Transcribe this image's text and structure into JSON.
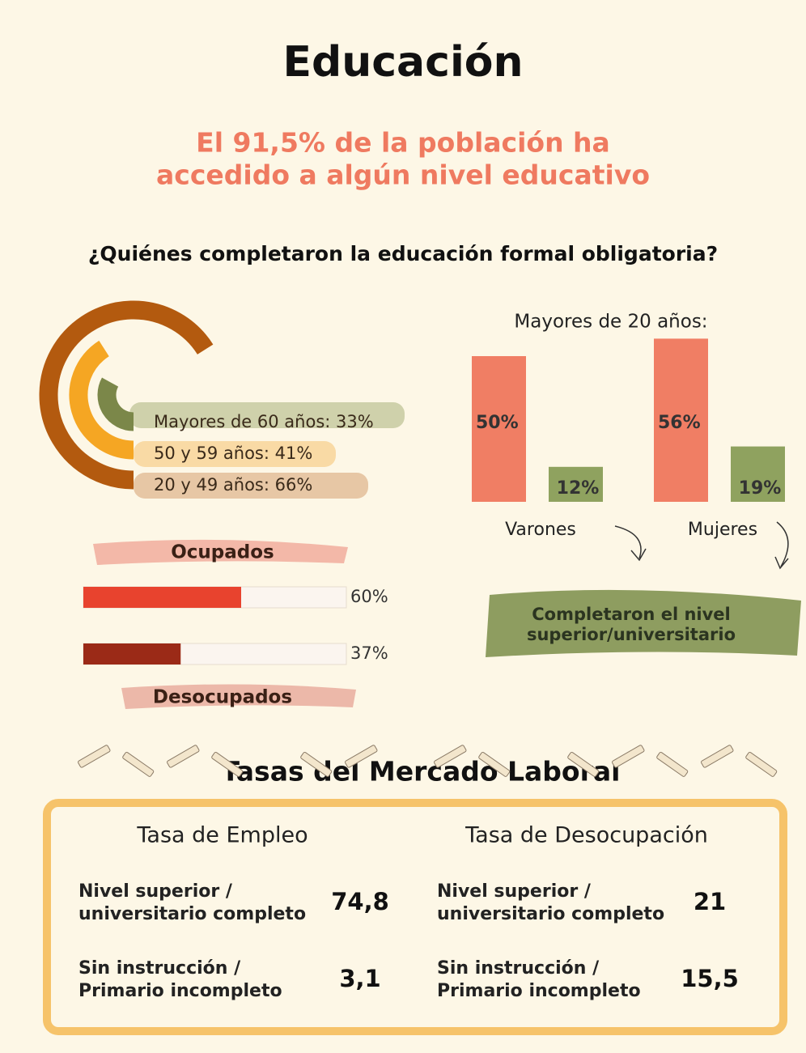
{
  "title": "Educación",
  "subtitle": [
    "El 91,5% de la población ha",
    "accedido a algún nivel educativo"
  ],
  "question": "¿Quiénes completaron la educación formal obligatoria?",
  "rings": {
    "type": "radial-bar",
    "lim": [
      0,
      100
    ],
    "values": [
      33,
      41,
      66
    ],
    "value_labels": [
      "Mayores de 60 años: 33%",
      "50 y 59 años: 41%",
      "20 y 49 años: 66%"
    ],
    "colors": [
      "#7b8749",
      "#f5a623",
      "#b35a0f"
    ]
  },
  "age_bars": {
    "type": "bar",
    "title": "Mayores de 20 años:",
    "ylim": [
      0,
      60
    ],
    "categories": [
      "Varones",
      "Mujeres"
    ],
    "series": [
      {
        "color": "#f07e64",
        "values": [
          50,
          56
        ],
        "value_labels": [
          "50%",
          "56%"
        ]
      },
      {
        "color": "#8fa25f",
        "values": [
          12,
          19
        ],
        "value_labels": [
          "12%",
          "19%"
        ]
      }
    ],
    "note": [
      "Completaron el nivel",
      "superior/universitario"
    ]
  },
  "employment": {
    "type": "progress",
    "xlim": [
      0,
      100
    ],
    "categories": [
      "Ocupados",
      "Desocupados"
    ],
    "values": [
      60,
      37
    ],
    "value_labels": [
      "60%",
      "37%"
    ],
    "colors": [
      "#e8432e",
      "#9b2a17"
    ]
  },
  "labor": {
    "title": "Tasas del Mercado Laboral",
    "columns": [
      {
        "title": "Tasa de Empleo",
        "rows": [
          {
            "label": [
              "Nivel superior /",
              "universitario completo"
            ],
            "value": "74,8"
          },
          {
            "label": [
              "Sin instrucción /",
              "Primario incompleto"
            ],
            "value": "3,1"
          }
        ]
      },
      {
        "title": "Tasa de Desocupación",
        "rows": [
          {
            "label": [
              "Nivel superior /",
              "universitario completo"
            ],
            "value": "21"
          },
          {
            "label": [
              "Sin instrucción /",
              "Primario incompleto"
            ],
            "value": "15,5"
          }
        ]
      }
    ]
  }
}
